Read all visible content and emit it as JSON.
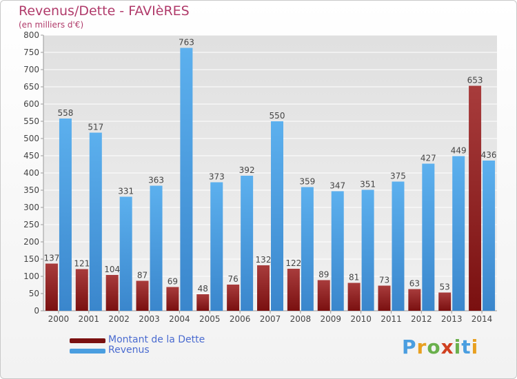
{
  "title": "Revenus/Dette - FAVIèRES",
  "subtitle": "(en milliers d'€)",
  "legend": [
    {
      "label": "Montant de la Dette",
      "color": "#7a1010"
    },
    {
      "label": "Revenus",
      "color": "#4a9ee0"
    }
  ],
  "logo": {
    "text": "Proxiti",
    "letter_colors": [
      "#4a9ee0",
      "#e8a020",
      "#6ab04c",
      "#d04020",
      "#6ab04c",
      "#4a9ee0",
      "#e8a020"
    ]
  },
  "colors": {
    "debt": "#7a1010",
    "debt_highlight": "#8c2a2a",
    "revenue": "#4a9ee0",
    "grid": "#ffffff",
    "plot_bg": "#e6e6e6",
    "label": "#444444"
  },
  "chart_data": {
    "type": "bar",
    "title": "Revenus/Dette - FAVIèRES",
    "subtitle": "(en milliers d'€)",
    "categories": [
      "2000",
      "2001",
      "2002",
      "2003",
      "2004",
      "2005",
      "2006",
      "2007",
      "2008",
      "2009",
      "2010",
      "2011",
      "2012",
      "2013",
      "2014"
    ],
    "series": [
      {
        "name": "Montant de la Dette",
        "values": [
          137,
          121,
          104,
          87,
          69,
          48,
          76,
          132,
          122,
          89,
          81,
          73,
          63,
          53,
          653
        ]
      },
      {
        "name": "Revenus",
        "values": [
          558,
          517,
          331,
          363,
          763,
          373,
          392,
          550,
          359,
          347,
          351,
          375,
          427,
          449,
          436
        ]
      }
    ],
    "ylim": [
      0,
      800
    ],
    "yticks": [
      0,
      50,
      100,
      150,
      200,
      250,
      300,
      350,
      400,
      450,
      500,
      550,
      600,
      650,
      700,
      750,
      800
    ],
    "grid": true,
    "legend_position": "bottom-left"
  }
}
